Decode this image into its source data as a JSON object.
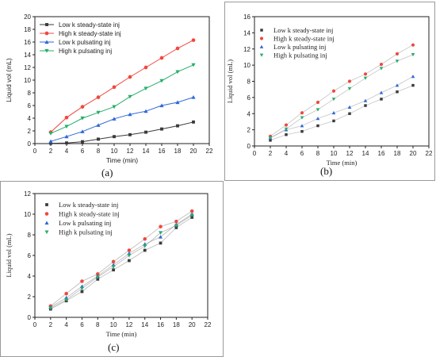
{
  "panels": [
    {
      "id": "a",
      "label": "(a)",
      "chart_data": {
        "type": "line",
        "xlabel": "Time (min)",
        "ylabel": "Liquid vol (mL)",
        "xlim": [
          0,
          22
        ],
        "ylim": [
          0,
          20
        ],
        "xticks": [
          0,
          2,
          4,
          6,
          8,
          10,
          12,
          14,
          16,
          18,
          20,
          22
        ],
        "yticks": [
          0,
          2,
          4,
          6,
          8,
          10,
          12,
          14,
          16,
          18,
          20
        ],
        "grid": false,
        "legend_position": "top-left",
        "x": [
          2,
          4,
          6,
          8,
          10,
          12,
          14,
          16,
          18,
          20
        ],
        "series": [
          {
            "name": "Low k steady-state inj",
            "color": "#3a3a3a",
            "marker": "square",
            "values": [
              0.05,
              0.1,
              0.3,
              0.7,
              1.1,
              1.4,
              1.8,
              2.3,
              2.8,
              3.4
            ]
          },
          {
            "name": "High k steady-state inj",
            "color": "#f0473e",
            "marker": "circle",
            "values": [
              1.8,
              4.1,
              5.8,
              7.3,
              8.9,
              10.5,
              12.0,
              13.5,
              15.0,
              16.3
            ]
          },
          {
            "name": "Low k pulsating inj",
            "color": "#2f67d8",
            "marker": "triangle-up",
            "values": [
              0.35,
              1.1,
              1.9,
              2.9,
              3.9,
              4.6,
              5.1,
              6.0,
              6.5,
              7.3
            ]
          },
          {
            "name": "High k pulsating inj",
            "color": "#26ad6a",
            "marker": "triangle-down",
            "values": [
              1.6,
              2.7,
              4.0,
              4.9,
              5.8,
              7.4,
              8.7,
              9.9,
              11.3,
              12.4
            ]
          }
        ]
      }
    },
    {
      "id": "b",
      "label": "(b)",
      "chart_data": {
        "type": "scatter",
        "xlabel": "Time (min)",
        "ylabel": "Liquid vol (mL)",
        "xlim": [
          0,
          22
        ],
        "ylim": [
          0,
          16
        ],
        "xticks": [
          0,
          2,
          4,
          6,
          8,
          10,
          12,
          14,
          16,
          18,
          20,
          22
        ],
        "yticks": [
          0,
          2,
          4,
          6,
          8,
          10,
          12,
          14,
          16
        ],
        "grid": false,
        "legend_position": "top-left",
        "x": [
          2,
          4,
          6,
          8,
          10,
          12,
          14,
          16,
          18,
          20
        ],
        "series": [
          {
            "name": "Low k steady-state inj",
            "color": "#3a3a3a",
            "marker": "square",
            "values": [
              0.7,
              1.4,
              1.8,
              2.5,
              3.1,
              4.0,
              5.0,
              5.8,
              6.7,
              7.5
            ]
          },
          {
            "name": "High k steady-state inj",
            "color": "#f0473e",
            "marker": "circle",
            "values": [
              1.2,
              2.6,
              4.1,
              5.4,
              6.8,
              8.0,
              8.9,
              10.1,
              11.4,
              12.5
            ]
          },
          {
            "name": "Low k pulsating inj",
            "color": "#2f67d8",
            "marker": "triangle-up",
            "values": [
              1.0,
              2.0,
              2.5,
              3.4,
              4.1,
              4.8,
              5.6,
              6.6,
              7.5,
              8.6
            ]
          },
          {
            "name": "High k pulsating inj",
            "color": "#26ad6a",
            "marker": "triangle-down",
            "values": [
              1.0,
              2.1,
              3.5,
              4.5,
              5.8,
              7.1,
              8.4,
              9.6,
              10.5,
              11.3
            ]
          }
        ]
      }
    },
    {
      "id": "c",
      "label": "(c)",
      "chart_data": {
        "type": "line",
        "xlabel": "Time (min)",
        "ylabel": "Liquid vol (mL)",
        "xlim": [
          0,
          22
        ],
        "ylim": [
          0,
          12
        ],
        "xticks": [
          0,
          2,
          4,
          6,
          8,
          10,
          12,
          14,
          16,
          18,
          20,
          22
        ],
        "yticks": [
          0,
          2,
          4,
          6,
          8,
          10,
          12
        ],
        "grid": false,
        "legend_position": "top-left",
        "x": [
          2,
          4,
          6,
          8,
          10,
          12,
          14,
          16,
          18,
          20
        ],
        "series": [
          {
            "name": "Low k steady-state inj",
            "color": "#3a3a3a",
            "marker": "square",
            "values": [
              0.8,
              1.6,
              2.5,
              3.7,
              4.6,
              5.5,
              6.5,
              7.2,
              8.7,
              9.7
            ]
          },
          {
            "name": "High k steady-state inj",
            "color": "#f0473e",
            "marker": "circle",
            "values": [
              1.1,
              2.3,
              3.5,
              4.2,
              5.4,
              6.5,
              7.6,
              8.8,
              9.3,
              10.3
            ]
          },
          {
            "name": "Low k pulsating inj",
            "color": "#2f67d8",
            "marker": "triangle-up",
            "values": [
              1.0,
              1.9,
              3.0,
              4.0,
              5.1,
              6.2,
              7.1,
              7.8,
              9.0,
              10.0
            ]
          },
          {
            "name": "High k pulsating inj",
            "color": "#26ad6a",
            "marker": "triangle-down",
            "values": [
              0.9,
              1.7,
              2.8,
              3.9,
              4.9,
              6.0,
              6.9,
              8.2,
              8.9,
              9.9
            ]
          }
        ]
      }
    }
  ]
}
